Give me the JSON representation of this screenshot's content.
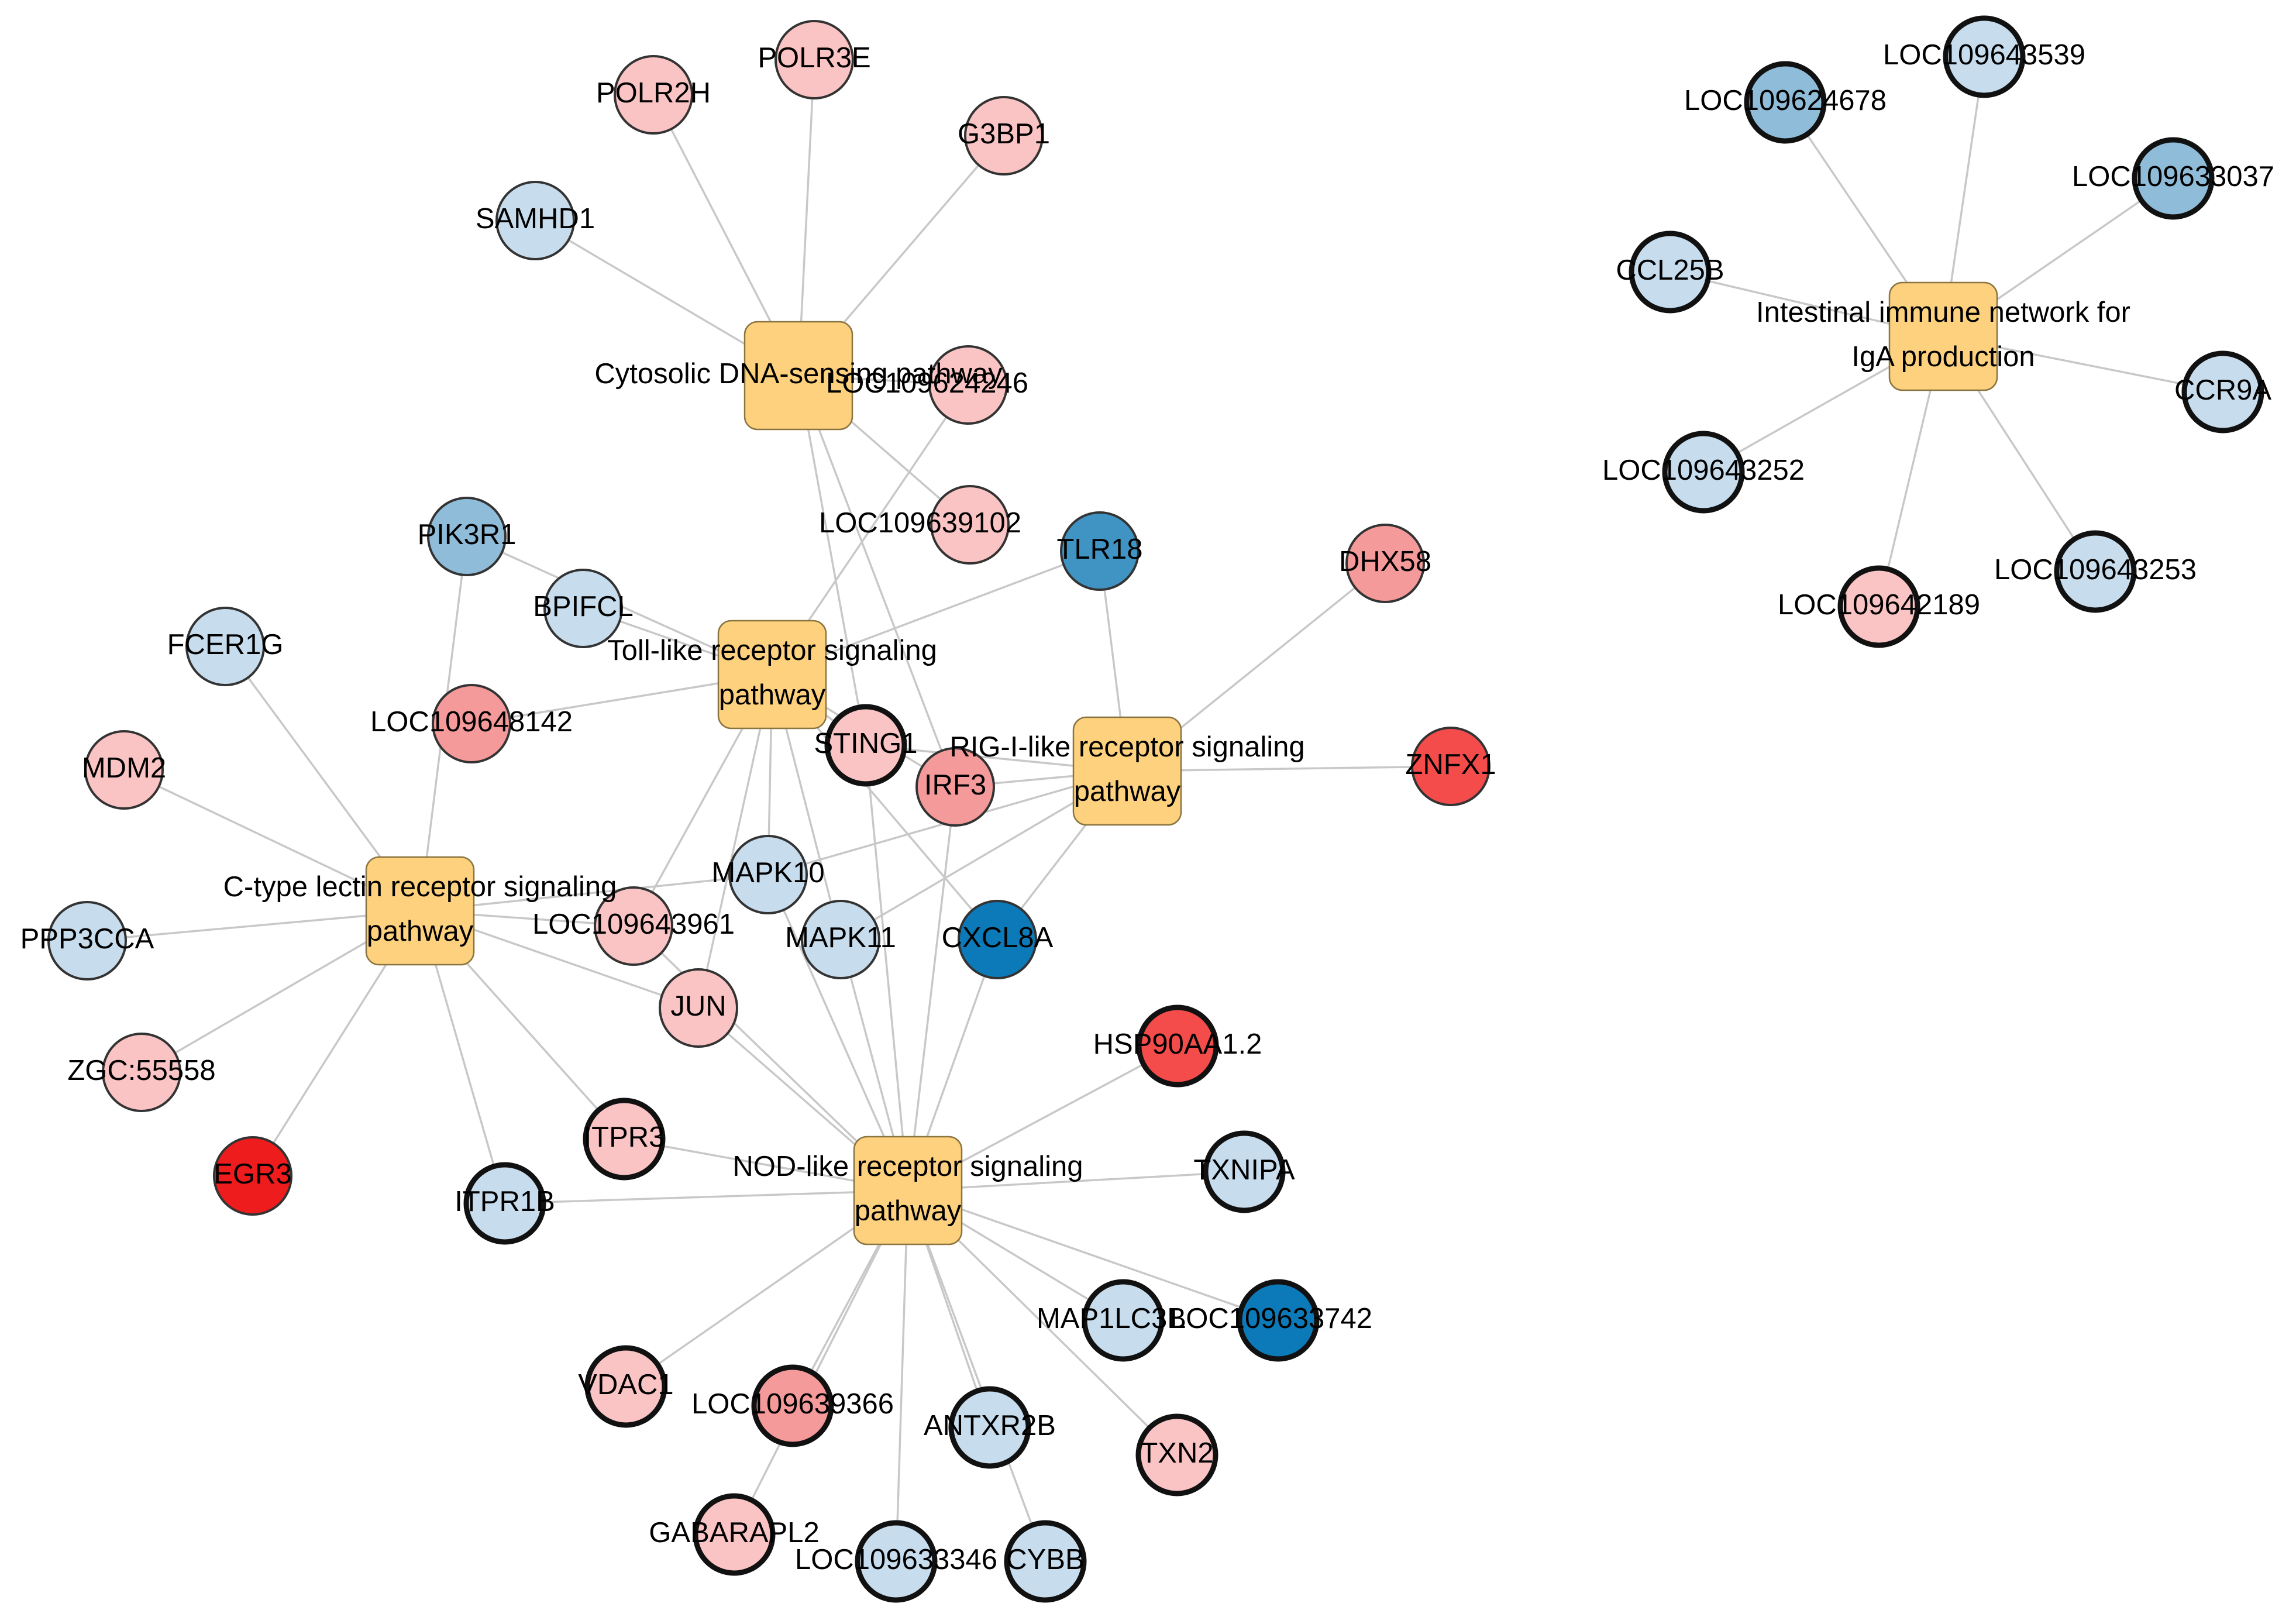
{
  "colors": {
    "up_strong": "#ee1c1c",
    "up_high": "#f44b4b",
    "up_mid": "#f59a9a",
    "up_low": "#fbc4c4",
    "down_low": "#c7dced",
    "down_mid": "#8fbcd8",
    "down_high": "#3f94c4",
    "down_strong": "#0c7ab8",
    "pathway_fill": "#fdd17d"
  },
  "pathways": [
    {
      "id": "p_cyto",
      "lines": [
        "Cytosolic DNA-sensing pathway"
      ]
    },
    {
      "id": "p_toll",
      "lines": [
        "Toll-like receptor signaling",
        "pathway"
      ]
    },
    {
      "id": "p_rig",
      "lines": [
        "RIG-I-like receptor signaling",
        "pathway"
      ]
    },
    {
      "id": "p_ctype",
      "lines": [
        "C-type lectin receptor signaling",
        "pathway"
      ]
    },
    {
      "id": "p_nod",
      "lines": [
        "NOD-like receptor signaling",
        "pathway"
      ]
    },
    {
      "id": "p_iga",
      "lines": [
        "Intestinal immune network for",
        "IgA production"
      ]
    }
  ],
  "genes": [
    {
      "id": "POLR2H",
      "label": "POLR2H",
      "color": "up_low",
      "bold": false
    },
    {
      "id": "POLR3E",
      "label": "POLR3E",
      "color": "up_low",
      "bold": false
    },
    {
      "id": "G3BP1",
      "label": "G3BP1",
      "color": "up_low",
      "bold": false
    },
    {
      "id": "SAMHD1",
      "label": "SAMHD1",
      "color": "down_low",
      "bold": false
    },
    {
      "id": "LOC109624246",
      "label": "LOC109624246",
      "color": "up_low",
      "bold": false
    },
    {
      "id": "LOC109639102",
      "label": "LOC109639102",
      "color": "up_low",
      "bold": false
    },
    {
      "id": "TLR18",
      "label": "TLR18",
      "color": "down_high",
      "bold": false
    },
    {
      "id": "DHX58",
      "label": "DHX58",
      "color": "up_mid",
      "bold": false
    },
    {
      "id": "PIK3R1",
      "label": "PIK3R1",
      "color": "down_mid",
      "bold": false
    },
    {
      "id": "BPIFCL",
      "label": "BPIFCL",
      "color": "down_low",
      "bold": false
    },
    {
      "id": "FCER1G",
      "label": "FCER1G",
      "color": "down_low",
      "bold": false
    },
    {
      "id": "LOC109648142",
      "label": "LOC109648142",
      "color": "up_mid",
      "bold": false
    },
    {
      "id": "MDM2",
      "label": "MDM2",
      "color": "up_low",
      "bold": false
    },
    {
      "id": "STING1",
      "label": "STING1",
      "color": "up_low",
      "bold": true
    },
    {
      "id": "IRF3",
      "label": "IRF3",
      "color": "up_mid",
      "bold": false
    },
    {
      "id": "ZNFX1",
      "label": "ZNFX1",
      "color": "up_high",
      "bold": false
    },
    {
      "id": "MAPK10",
      "label": "MAPK10",
      "color": "down_low",
      "bold": false
    },
    {
      "id": "PPP3CCA",
      "label": "PPP3CCA",
      "color": "down_low",
      "bold": false
    },
    {
      "id": "LOC109643961",
      "label": "LOC109643961",
      "color": "up_low",
      "bold": false
    },
    {
      "id": "MAPK11",
      "label": "MAPK11",
      "color": "down_low",
      "bold": false
    },
    {
      "id": "CXCL8A",
      "label": "CXCL8A",
      "color": "down_strong",
      "bold": false
    },
    {
      "id": "JUN",
      "label": "JUN",
      "color": "up_low",
      "bold": false
    },
    {
      "id": "ZGC55558",
      "label": "ZGC:55558",
      "color": "up_low",
      "bold": false
    },
    {
      "id": "HSP90AA12",
      "label": "HSP90AA1.2",
      "color": "up_high",
      "bold": true
    },
    {
      "id": "EGR3",
      "label": "EGR3",
      "color": "up_strong",
      "bold": false
    },
    {
      "id": "ITPR3",
      "label": "ITPR3",
      "color": "up_low",
      "bold": true
    },
    {
      "id": "ITPR1B",
      "label": "ITPR1B",
      "color": "down_low",
      "bold": true
    },
    {
      "id": "TXNIPA",
      "label": "TXNIPA",
      "color": "down_low",
      "bold": true
    },
    {
      "id": "MAP1LC3B",
      "label": "MAP1LC3B",
      "color": "down_low",
      "bold": true
    },
    {
      "id": "LOC109633742",
      "label": "LOC109633742",
      "color": "down_strong",
      "bold": true
    },
    {
      "id": "VDAC1",
      "label": "VDAC1",
      "color": "up_low",
      "bold": true
    },
    {
      "id": "LOC109639366",
      "label": "LOC109639366",
      "color": "up_mid",
      "bold": true
    },
    {
      "id": "ANTXR2B",
      "label": "ANTXR2B",
      "color": "down_low",
      "bold": true
    },
    {
      "id": "TXN2",
      "label": "TXN2",
      "color": "up_low",
      "bold": true
    },
    {
      "id": "GABARAPL2",
      "label": "GABARAPL2",
      "color": "up_low",
      "bold": true
    },
    {
      "id": "LOC109633346",
      "label": "LOC109633346",
      "color": "down_low",
      "bold": true
    },
    {
      "id": "CYBB",
      "label": "CYBB",
      "color": "down_low",
      "bold": true
    },
    {
      "id": "LOC109643539",
      "label": "LOC109643539",
      "color": "down_low",
      "bold": true
    },
    {
      "id": "LOC109624678",
      "label": "LOC109624678",
      "color": "down_mid",
      "bold": true
    },
    {
      "id": "LOC109633037",
      "label": "LOC109633037",
      "color": "down_mid",
      "bold": true
    },
    {
      "id": "CCL25B",
      "label": "CCL25B",
      "color": "down_low",
      "bold": true
    },
    {
      "id": "CCR9A",
      "label": "CCR9A",
      "color": "down_low",
      "bold": true
    },
    {
      "id": "LOC109643252",
      "label": "LOC109643252",
      "color": "down_low",
      "bold": true
    },
    {
      "id": "LOC109643253",
      "label": "LOC109643253",
      "color": "down_low",
      "bold": true
    },
    {
      "id": "LOC109642189",
      "label": "LOC109642189",
      "color": "up_low",
      "bold": true
    }
  ],
  "edges": [
    [
      "p_cyto",
      "POLR2H"
    ],
    [
      "p_cyto",
      "POLR3E"
    ],
    [
      "p_cyto",
      "G3BP1"
    ],
    [
      "p_cyto",
      "SAMHD1"
    ],
    [
      "p_cyto",
      "LOC109624246"
    ],
    [
      "p_cyto",
      "LOC109639102"
    ],
    [
      "p_cyto",
      "STING1"
    ],
    [
      "p_cyto",
      "IRF3"
    ],
    [
      "p_toll",
      "TLR18"
    ],
    [
      "p_toll",
      "PIK3R1"
    ],
    [
      "p_toll",
      "BPIFCL"
    ],
    [
      "p_toll",
      "LOC109648142"
    ],
    [
      "p_toll",
      "LOC109624246"
    ],
    [
      "p_toll",
      "STING1"
    ],
    [
      "p_toll",
      "IRF3"
    ],
    [
      "p_toll",
      "MAPK10"
    ],
    [
      "p_toll",
      "MAPK11"
    ],
    [
      "p_toll",
      "CXCL8A"
    ],
    [
      "p_toll",
      "LOC109643961"
    ],
    [
      "p_toll",
      "JUN"
    ],
    [
      "p_rig",
      "TLR18"
    ],
    [
      "p_rig",
      "DHX58"
    ],
    [
      "p_rig",
      "ZNFX1"
    ],
    [
      "p_rig",
      "IRF3"
    ],
    [
      "p_rig",
      "STING1"
    ],
    [
      "p_rig",
      "MAPK10"
    ],
    [
      "p_rig",
      "MAPK11"
    ],
    [
      "p_rig",
      "CXCL8A"
    ],
    [
      "p_ctype",
      "PIK3R1"
    ],
    [
      "p_ctype",
      "FCER1G"
    ],
    [
      "p_ctype",
      "MDM2"
    ],
    [
      "p_ctype",
      "PPP3CCA"
    ],
    [
      "p_ctype",
      "ZGC55558"
    ],
    [
      "p_ctype",
      "EGR3"
    ],
    [
      "p_ctype",
      "ITPR1B"
    ],
    [
      "p_ctype",
      "ITPR3"
    ],
    [
      "p_ctype",
      "JUN"
    ],
    [
      "p_ctype",
      "LOC109643961"
    ],
    [
      "p_ctype",
      "MAPK10"
    ],
    [
      "p_nod",
      "STING1"
    ],
    [
      "p_nod",
      "IRF3"
    ],
    [
      "p_nod",
      "MAPK10"
    ],
    [
      "p_nod",
      "MAPK11"
    ],
    [
      "p_nod",
      "CXCL8A"
    ],
    [
      "p_nod",
      "JUN"
    ],
    [
      "p_nod",
      "LOC109643961"
    ],
    [
      "p_nod",
      "HSP90AA12"
    ],
    [
      "p_nod",
      "ITPR3"
    ],
    [
      "p_nod",
      "ITPR1B"
    ],
    [
      "p_nod",
      "TXNIPA"
    ],
    [
      "p_nod",
      "MAP1LC3B"
    ],
    [
      "p_nod",
      "LOC109633742"
    ],
    [
      "p_nod",
      "VDAC1"
    ],
    [
      "p_nod",
      "LOC109639366"
    ],
    [
      "p_nod",
      "ANTXR2B"
    ],
    [
      "p_nod",
      "TXN2"
    ],
    [
      "p_nod",
      "LOC109633346"
    ],
    [
      "p_nod",
      "CYBB"
    ],
    [
      "p_nod",
      "GABARAPL2"
    ],
    [
      "p_iga",
      "LOC109643539"
    ],
    [
      "p_iga",
      "LOC109624678"
    ],
    [
      "p_iga",
      "LOC109633037"
    ],
    [
      "p_iga",
      "CCL25B"
    ],
    [
      "p_iga",
      "CCR9A"
    ],
    [
      "p_iga",
      "LOC109643252"
    ],
    [
      "p_iga",
      "LOC109643253"
    ],
    [
      "p_iga",
      "LOC109642189"
    ]
  ]
}
